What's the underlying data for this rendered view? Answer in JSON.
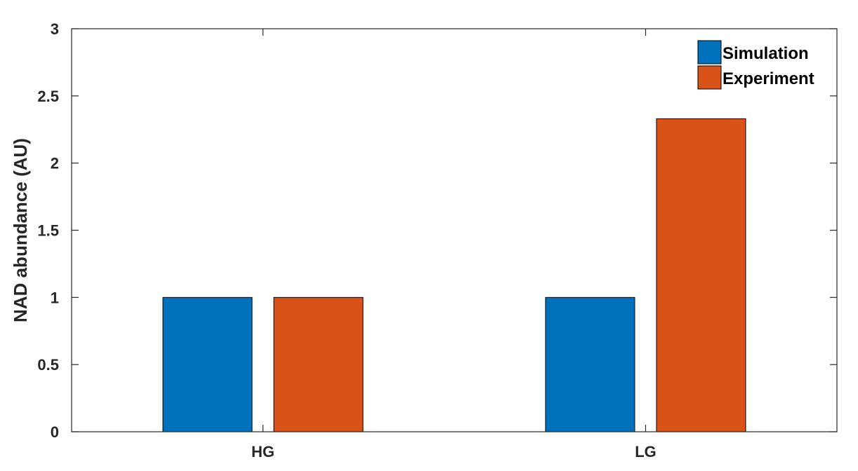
{
  "chart_data": {
    "type": "bar",
    "categories": [
      "HG",
      "LG"
    ],
    "series": [
      {
        "name": "Simulation",
        "values": [
          1.0,
          1.0
        ],
        "color": "#0072BD"
      },
      {
        "name": "Experiment",
        "values": [
          1.0,
          2.33
        ],
        "color": "#D95319"
      }
    ],
    "title": "",
    "xlabel": "",
    "ylabel": "NAD abundance (AU)",
    "ylim": [
      0,
      3
    ],
    "yticks": [
      "0",
      "0.5",
      "1",
      "1.5",
      "2",
      "2.5",
      "3"
    ],
    "grid": false,
    "legend_position": "top-right"
  }
}
